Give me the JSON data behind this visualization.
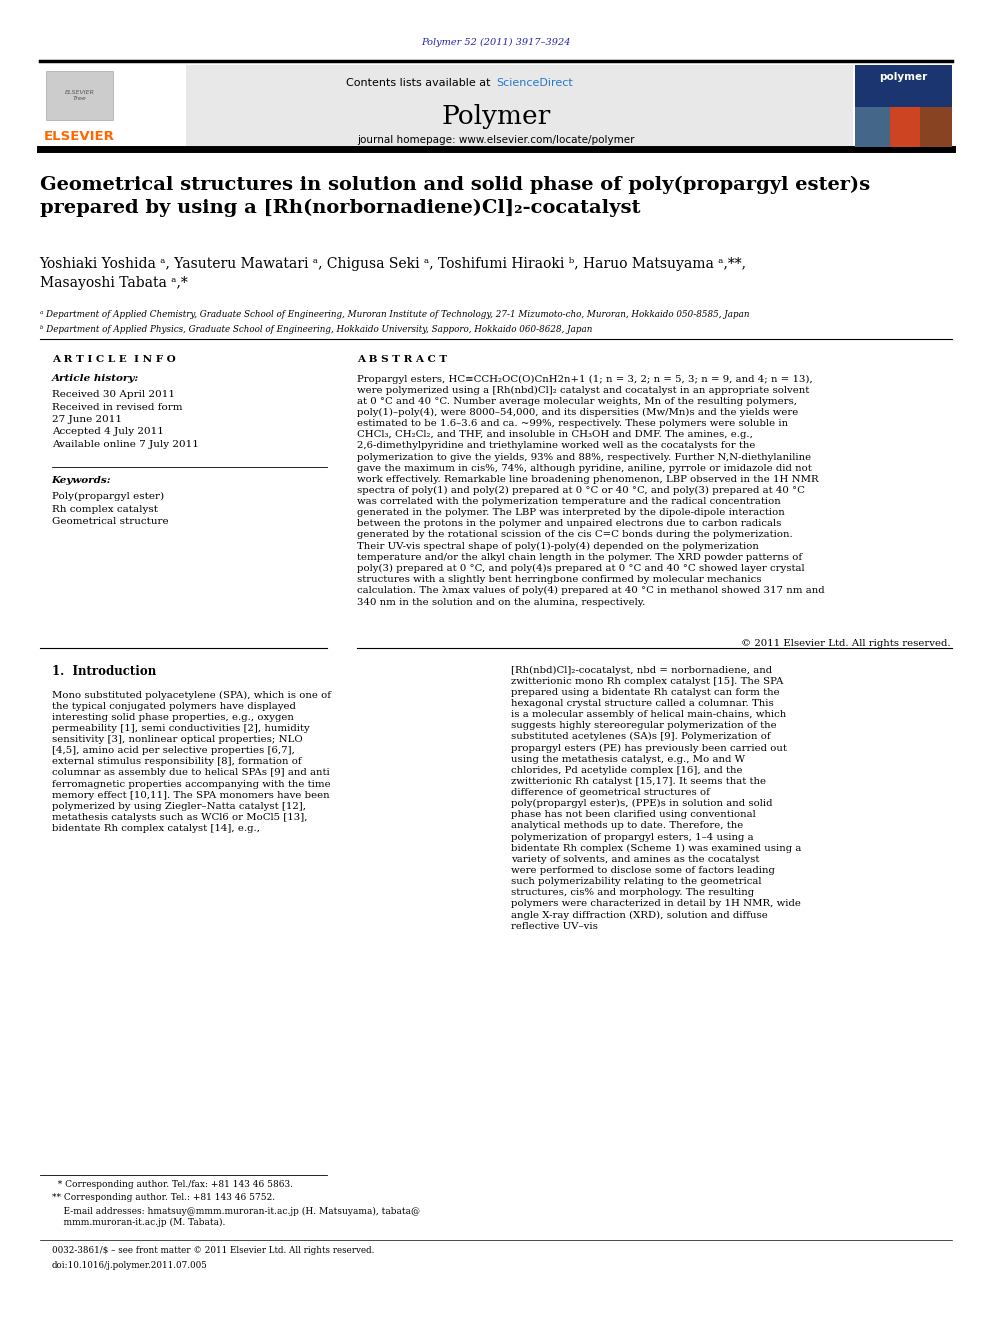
{
  "bg_color": "#ffffff",
  "page_width": 9.92,
  "page_height": 13.23,
  "journal_ref": "Polymer 52 (2011) 3917–3924",
  "journal_ref_color": "#2222aa",
  "header_bg": "#e8e8e8",
  "contents_text": "Contents lists available at ",
  "sciencedirect_text": "ScienceDirect",
  "sciencedirect_color": "#2277cc",
  "journal_name": "Polymer",
  "homepage_text": "journal homepage: www.elsevier.com/locate/polymer",
  "elsevier_color": "#ff6600",
  "elsevier_text": "ELSEVIER",
  "title": "Geometrical structures in solution and solid phase of poly(propargyl ester)s\nprepared by using a [Rh(norbornadiene)Cl]₂-cocatalyst",
  "authors": "Yoshiaki Yoshida ᵃ, Yasuteru Mawatari ᵃ, Chigusa Seki ᵃ, Toshifumi Hiraoki ᵇ, Haruo Matsuyama ᵃ,**,\nMasayoshi Tabata ᵃ,*",
  "affil_a": "ᵃ Department of Applied Chemistry, Graduate School of Engineering, Muroran Institute of Technology, 27-1 Mizumoto-cho, Muroran, Hokkaido 050-8585, Japan",
  "affil_b": "ᵇ Department of Applied Physics, Graduate School of Engineering, Hokkaido University, Sapporo, Hokkaido 060-8628, Japan",
  "article_info_header": "A R T I C L E  I N F O",
  "abstract_header": "A B S T R A C T",
  "article_history_label": "Article history:",
  "article_history": "Received 30 April 2011\nReceived in revised form\n27 June 2011\nAccepted 4 July 2011\nAvailable online 7 July 2011",
  "keywords_label": "Keywords:",
  "keywords": "Poly(propargyl ester)\nRh complex catalyst\nGeometrical structure",
  "abstract_text": "Propargyl esters, HC≡CCH₂OC(O)CnH2n+1 (1; n = 3, 2; n = 5, 3; n = 9, and 4; n = 13), were polymerized using a [Rh(nbd)Cl]₂ catalyst and cocatalyst in an appropriate solvent at 0 °C and 40 °C. Number average molecular weights, Mn of the resulting polymers, poly(1)–poly(4), were 8000–54,000, and its dispersities (Mw/Mn)s and the yields were estimated to be 1.6–3.6 and ca. ~99%, respectively. These polymers were soluble in CHCl₃, CH₂Cl₂, and THF, and insoluble in CH₃OH and DMF. The amines, e.g., 2,6-dimethylpyridine and triethylamine worked well as the cocatalysts for the polymerization to give the yields, 93% and 88%, respectively. Further N,N-diethylaniline gave the maximum in cis%, 74%, although pyridine, aniline, pyrrole or imidazole did not work effectively. Remarkable line broadening phenomenon, LBP observed in the 1H NMR spectra of poly(1) and poly(2) prepared at 0 °C or 40 °C, and poly(3) prepared at 40 °C was correlated with the polymerization temperature and the radical concentration generated in the polymer. The LBP was interpreted by the dipole-dipole interaction between the protons in the polymer and unpaired electrons due to carbon radicals generated by the rotational scission of the cis C=C bonds during the polymerization. Their UV-vis spectral shape of poly(1)-poly(4) depended on the polymerization temperature and/or the alkyl chain length in the polymer. The XRD powder patterns of poly(3) prepared at 0 °C, and poly(4)s prepared at 0 °C and 40 °C showed layer crystal structures with a slightly bent herringbone confirmed by molecular mechanics calculation. The λmax values of poly(4) prepared at 40 °C in methanol showed 317 nm and 340 nm in the solution and on the alumina, respectively.",
  "copyright": "© 2011 Elsevier Ltd. All rights reserved.",
  "section1_header": "1.  Introduction",
  "intro_col1": "      Mono substituted polyacetylene (SPA), which is one of the typical conjugated polymers have displayed interesting solid phase properties, e.g., oxygen permeability [1], semi conductivities [2], humidity sensitivity [3], nonlinear optical properties; NLO [4,5], amino acid per selective properties [6,7], external stimulus responsibility [8], formation of columnar as assembly due to helical SPAs [9] and anti ferromagnetic properties accompanying with the time memory effect [10,11]. The SPA monomers have been polymerized by using Ziegler–Natta catalyst [12], metathesis catalysts such as WCl6 or MoCl5 [13], bidentate Rh complex catalyst [14], e.g.,",
  "intro_col2": "[Rh(nbd)Cl]₂-cocatalyst, nbd = norbornadiene, and zwitterionic mono Rh complex catalyst [15]. The SPA prepared using a bidentate Rh catalyst can form the hexagonal crystal structure called a columnar. This is a molecular assembly of helical main-chains, which suggests highly stereoregular polymerization of the substituted acetylenes (SA)s [9]. Polymerization of propargyl esters (PE) has previously been carried out using the metathesis catalyst, e.g., Mo and W chlorides, Pd acetylide complex [16], and the zwitterionic Rh catalyst [15,17]. It seems that the difference of geometrical structures of poly(propargyl ester)s, (PPE)s in solution and solid phase has not been clarified using conventional analytical methods up to date. Therefore, the polymerization of propargyl esters, 1–4 using a bidentate Rh complex (Scheme 1) was examined using a variety of solvents, and amines as the cocatalyst were performed to disclose some of factors leading such polymerizability relating to the geometrical structures, cis% and morphology. The resulting polymers were characterized in detail by 1H NMR, wide angle X-ray diffraction (XRD), solution and diffuse reflective UV–vis",
  "footnote1": "  * Corresponding author. Tel./fax: +81 143 46 5863.",
  "footnote2": "** Corresponding author. Tel.: +81 143 46 5752.",
  "footnote3": "    E-mail addresses: hmatsuy@mmm.muroran-it.ac.jp (H. Matsuyama), tabata@\n    mmm.muroran-it.ac.jp (M. Tabata).",
  "issn_text": "0032-3861/$ – see front matter © 2011 Elsevier Ltd. All rights reserved.",
  "doi_text": "doi:10.1016/j.polymer.2011.07.005"
}
